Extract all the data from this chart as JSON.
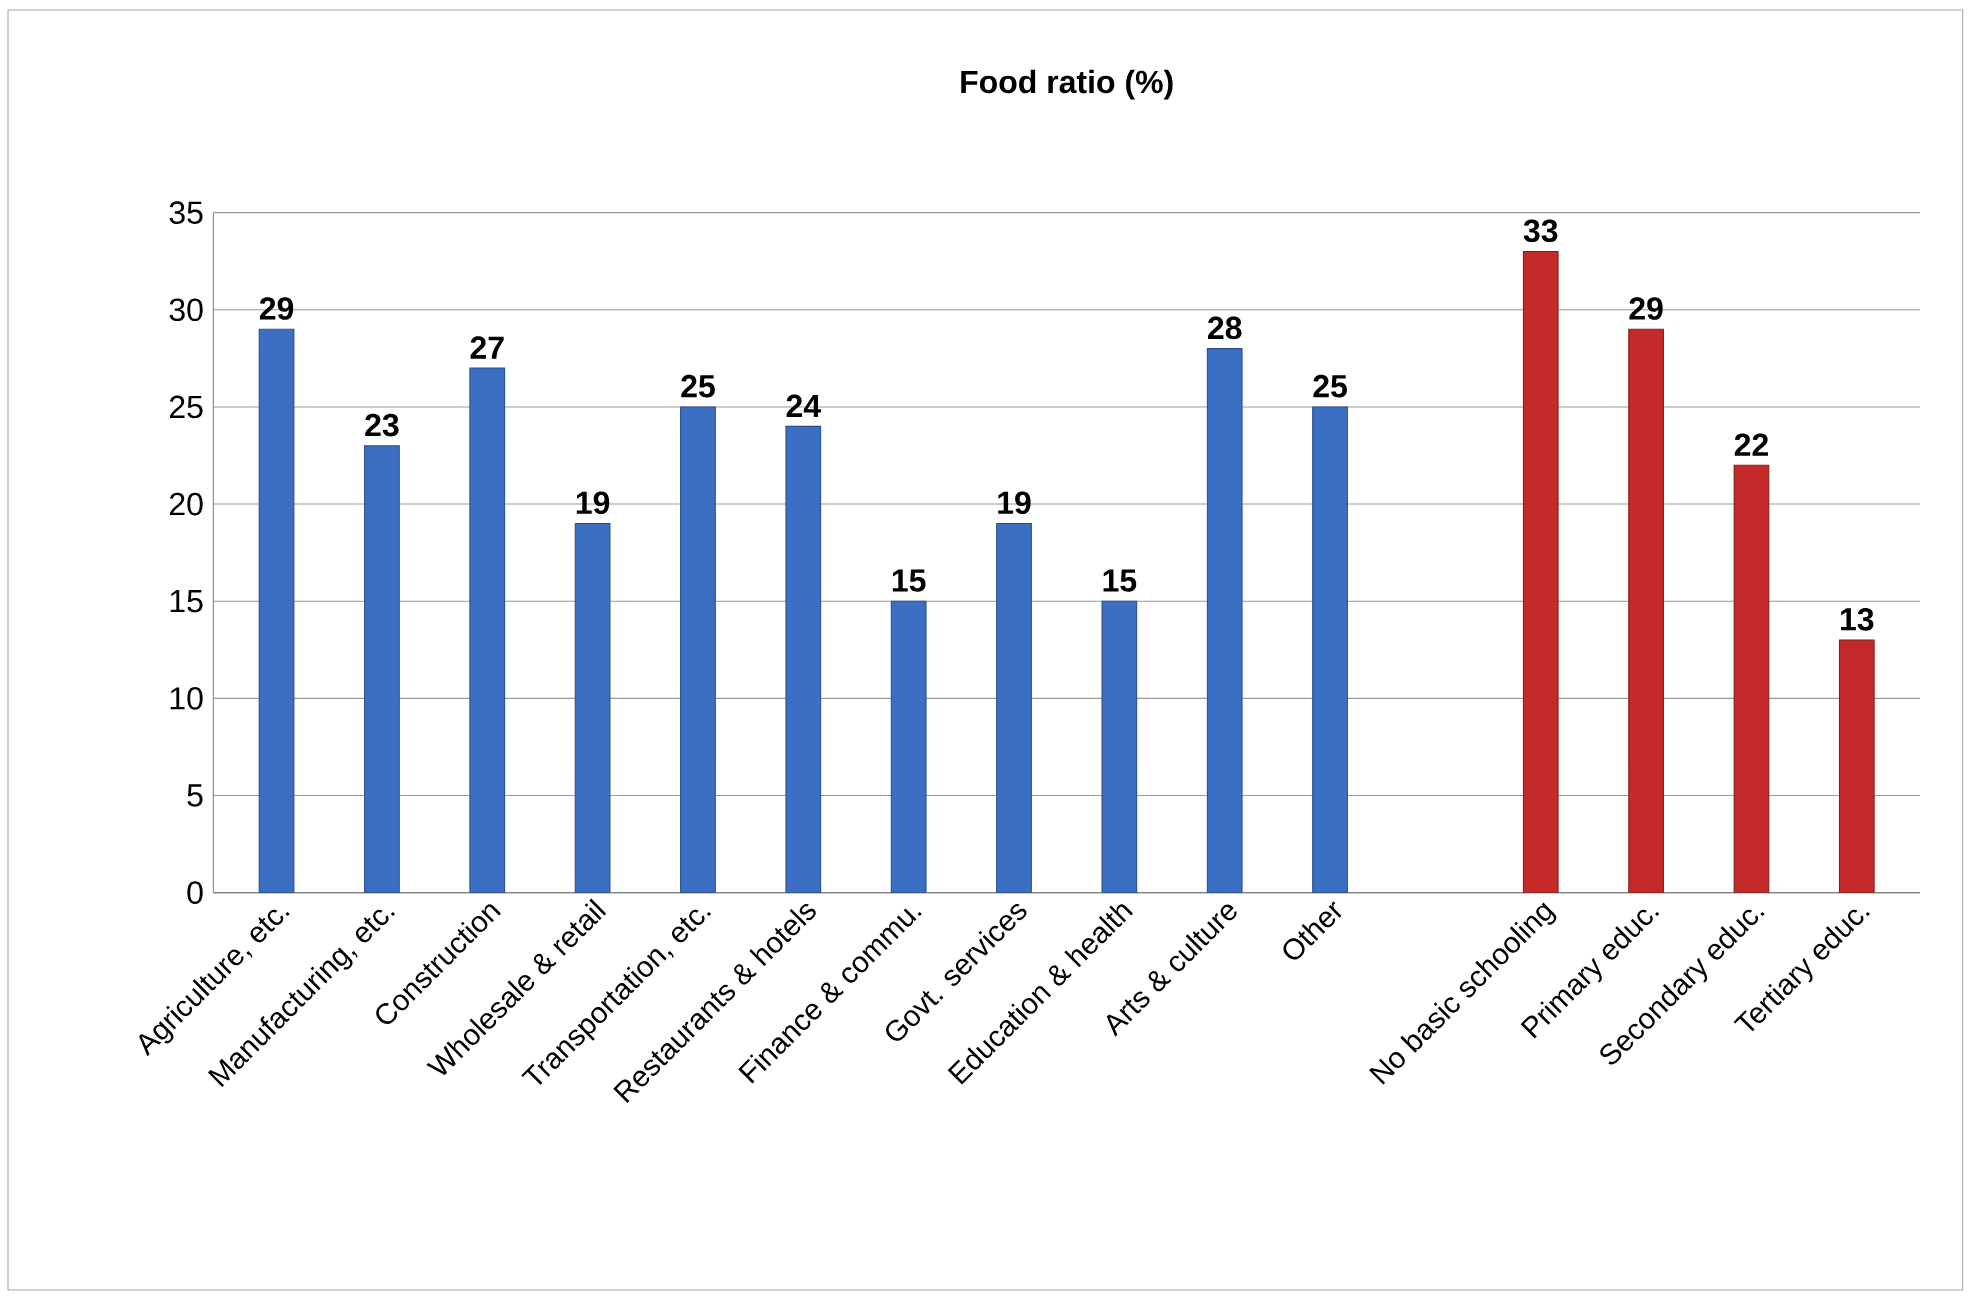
{
  "chart_data": {
    "type": "bar",
    "title": "Food ratio (%)",
    "categories": [
      "Agriculture, etc.",
      "Manufacturing, etc.",
      "Construction",
      "Wholesale & retail",
      "Transportation, etc.",
      "Restaurants & hotels",
      "Finance & commu.",
      "Govt. services",
      "Education & health",
      "Arts & culture",
      "Other",
      null,
      "No basic schooling",
      "Primary educ.",
      "Secondary educ.",
      "Tertiary educ."
    ],
    "series": [
      {
        "color": "#3a6fc4",
        "values": [
          29,
          23,
          27,
          19,
          25,
          24,
          15,
          19,
          15,
          28,
          25,
          null,
          null,
          null,
          null,
          null
        ]
      },
      {
        "color": "#c42a2a",
        "values": [
          null,
          null,
          null,
          null,
          null,
          null,
          null,
          null,
          null,
          null,
          null,
          null,
          33,
          29,
          22,
          13
        ]
      }
    ],
    "ylim": [
      0,
      35
    ],
    "yticks": [
      0,
      5,
      10,
      15,
      20,
      25,
      30,
      35
    ],
    "grid": "y",
    "data_labels": true
  }
}
